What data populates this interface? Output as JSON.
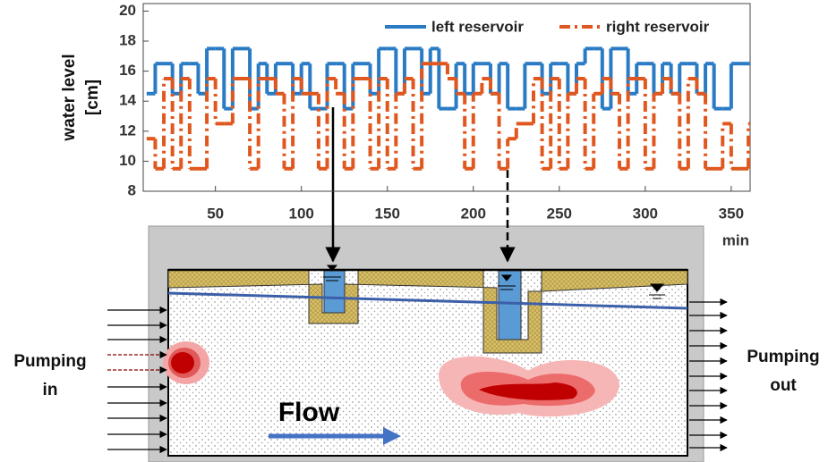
{
  "chart_data": {
    "type": "line",
    "step": true,
    "xlabel": "min",
    "ylabel": [
      "water level",
      "[cm]"
    ],
    "x": [
      10,
      15,
      20,
      25,
      30,
      35,
      40,
      45,
      50,
      55,
      60,
      65,
      70,
      75,
      80,
      85,
      90,
      95,
      100,
      105,
      110,
      115,
      120,
      125,
      130,
      135,
      140,
      145,
      150,
      155,
      160,
      165,
      170,
      175,
      180,
      185,
      190,
      195,
      200,
      205,
      210,
      215,
      220,
      225,
      230,
      235,
      240,
      245,
      250,
      255,
      260,
      265,
      270,
      275,
      280,
      285,
      290,
      295,
      300,
      305,
      310,
      315,
      320,
      325,
      330,
      335,
      340,
      345,
      350,
      355,
      360
    ],
    "series": [
      {
        "name": "left reservoir",
        "color": "#2a7bc4",
        "dash": "solid",
        "values": [
          14.5,
          16.5,
          16.5,
          14.5,
          16.5,
          16.5,
          14.5,
          17.5,
          17.5,
          13.5,
          17.5,
          17.5,
          13.5,
          16.5,
          14.5,
          16.5,
          16.5,
          14.5,
          16.5,
          13.5,
          13.5,
          16.5,
          16.5,
          13.5,
          16.5,
          16.5,
          14.5,
          17.5,
          17.5,
          14.5,
          17.5,
          17.5,
          14.5,
          17.5,
          13.5,
          13.5,
          16.5,
          14.5,
          16.5,
          16.5,
          14.5,
          16.5,
          13.5,
          13.5,
          16.5,
          16.5,
          14.5,
          16.5,
          16.5,
          14.5,
          16.5,
          17.5,
          17.5,
          13.5,
          17.5,
          17.5,
          14.5,
          16.5,
          16.5,
          14.5,
          16.5,
          14.5,
          16.5,
          16.5,
          14.5,
          16.5,
          13.5,
          13.5,
          16.5,
          16.5,
          16.5
        ]
      },
      {
        "name": "right reservoir",
        "color": "#e0581f",
        "dash": "dashdot",
        "values": [
          11.5,
          9.5,
          15.5,
          9.5,
          15.5,
          9.5,
          9.5,
          15.5,
          12.5,
          12.5,
          15.5,
          15.5,
          9.5,
          15.5,
          15.5,
          14.5,
          9.5,
          15.5,
          14.5,
          14.5,
          9.5,
          15.5,
          14.5,
          9.5,
          15.5,
          15.5,
          9.5,
          15.5,
          9.5,
          14.5,
          15.5,
          9.5,
          16.5,
          16.5,
          16.5,
          15.5,
          14.5,
          9.5,
          14.5,
          15.5,
          14.5,
          9.5,
          11.5,
          12.5,
          12.5,
          15.5,
          9.5,
          15.5,
          9.5,
          14.5,
          15.5,
          9.5,
          14.5,
          15.5,
          14.5,
          9.5,
          15.5,
          15.5,
          9.5,
          14.5,
          15.5,
          14.5,
          9.5,
          15.5,
          14.5,
          9.5,
          9.5,
          12.5,
          9.5,
          9.5,
          12.5
        ]
      }
    ],
    "xlim": [
      8,
      361
    ],
    "ylim": [
      8,
      20.5
    ],
    "xticks": [
      50,
      100,
      150,
      200,
      250,
      300,
      350
    ],
    "yticks": [
      8,
      10,
      12,
      14,
      16,
      18,
      20
    ],
    "legend": "top-right"
  },
  "diagram": {
    "left_label": [
      "Pumping",
      "in"
    ],
    "right_label": [
      "Pumping",
      "out"
    ],
    "flow_label": "Flow"
  }
}
